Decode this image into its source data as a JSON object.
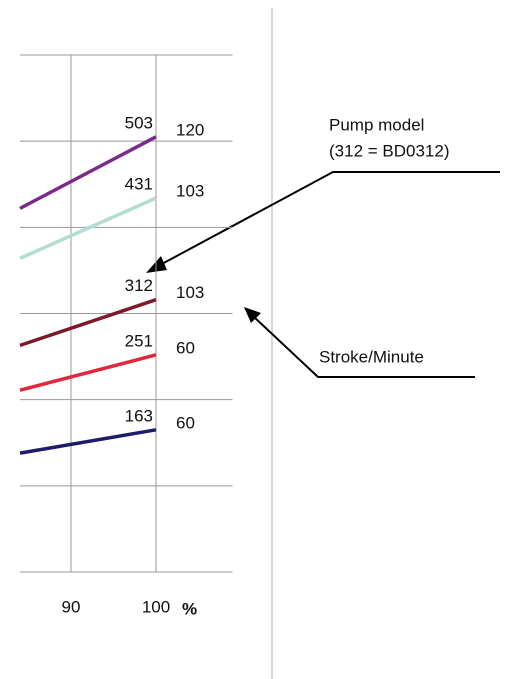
{
  "chart_data": {
    "type": "line",
    "x": [
      84,
      100
    ],
    "xlim": [
      84,
      109
    ],
    "xticks": [
      90,
      100
    ],
    "x_label": "%",
    "ylim": [
      0,
      6
    ],
    "yticks": [
      0,
      1,
      2,
      3,
      4,
      5,
      6
    ],
    "grid": true,
    "series": [
      {
        "name": "503",
        "stroke": "120",
        "color": "#7b2a8a",
        "values": [
          4.22,
          5.05
        ]
      },
      {
        "name": "431",
        "stroke": "103",
        "color": "#b3dcd3",
        "values": [
          3.64,
          4.34
        ]
      },
      {
        "name": "312",
        "stroke": "103",
        "color": "#7a1a2a",
        "values": [
          2.63,
          3.16
        ]
      },
      {
        "name": "251",
        "stroke": "60",
        "color": "#e0283a",
        "values": [
          2.11,
          2.52
        ]
      },
      {
        "name": "163",
        "stroke": "60",
        "color": "#1c1c6c",
        "values": [
          1.38,
          1.65
        ]
      }
    ],
    "annotations": [
      "Pump model",
      "(312 = BD0312)",
      "Stroke/Minute"
    ]
  }
}
